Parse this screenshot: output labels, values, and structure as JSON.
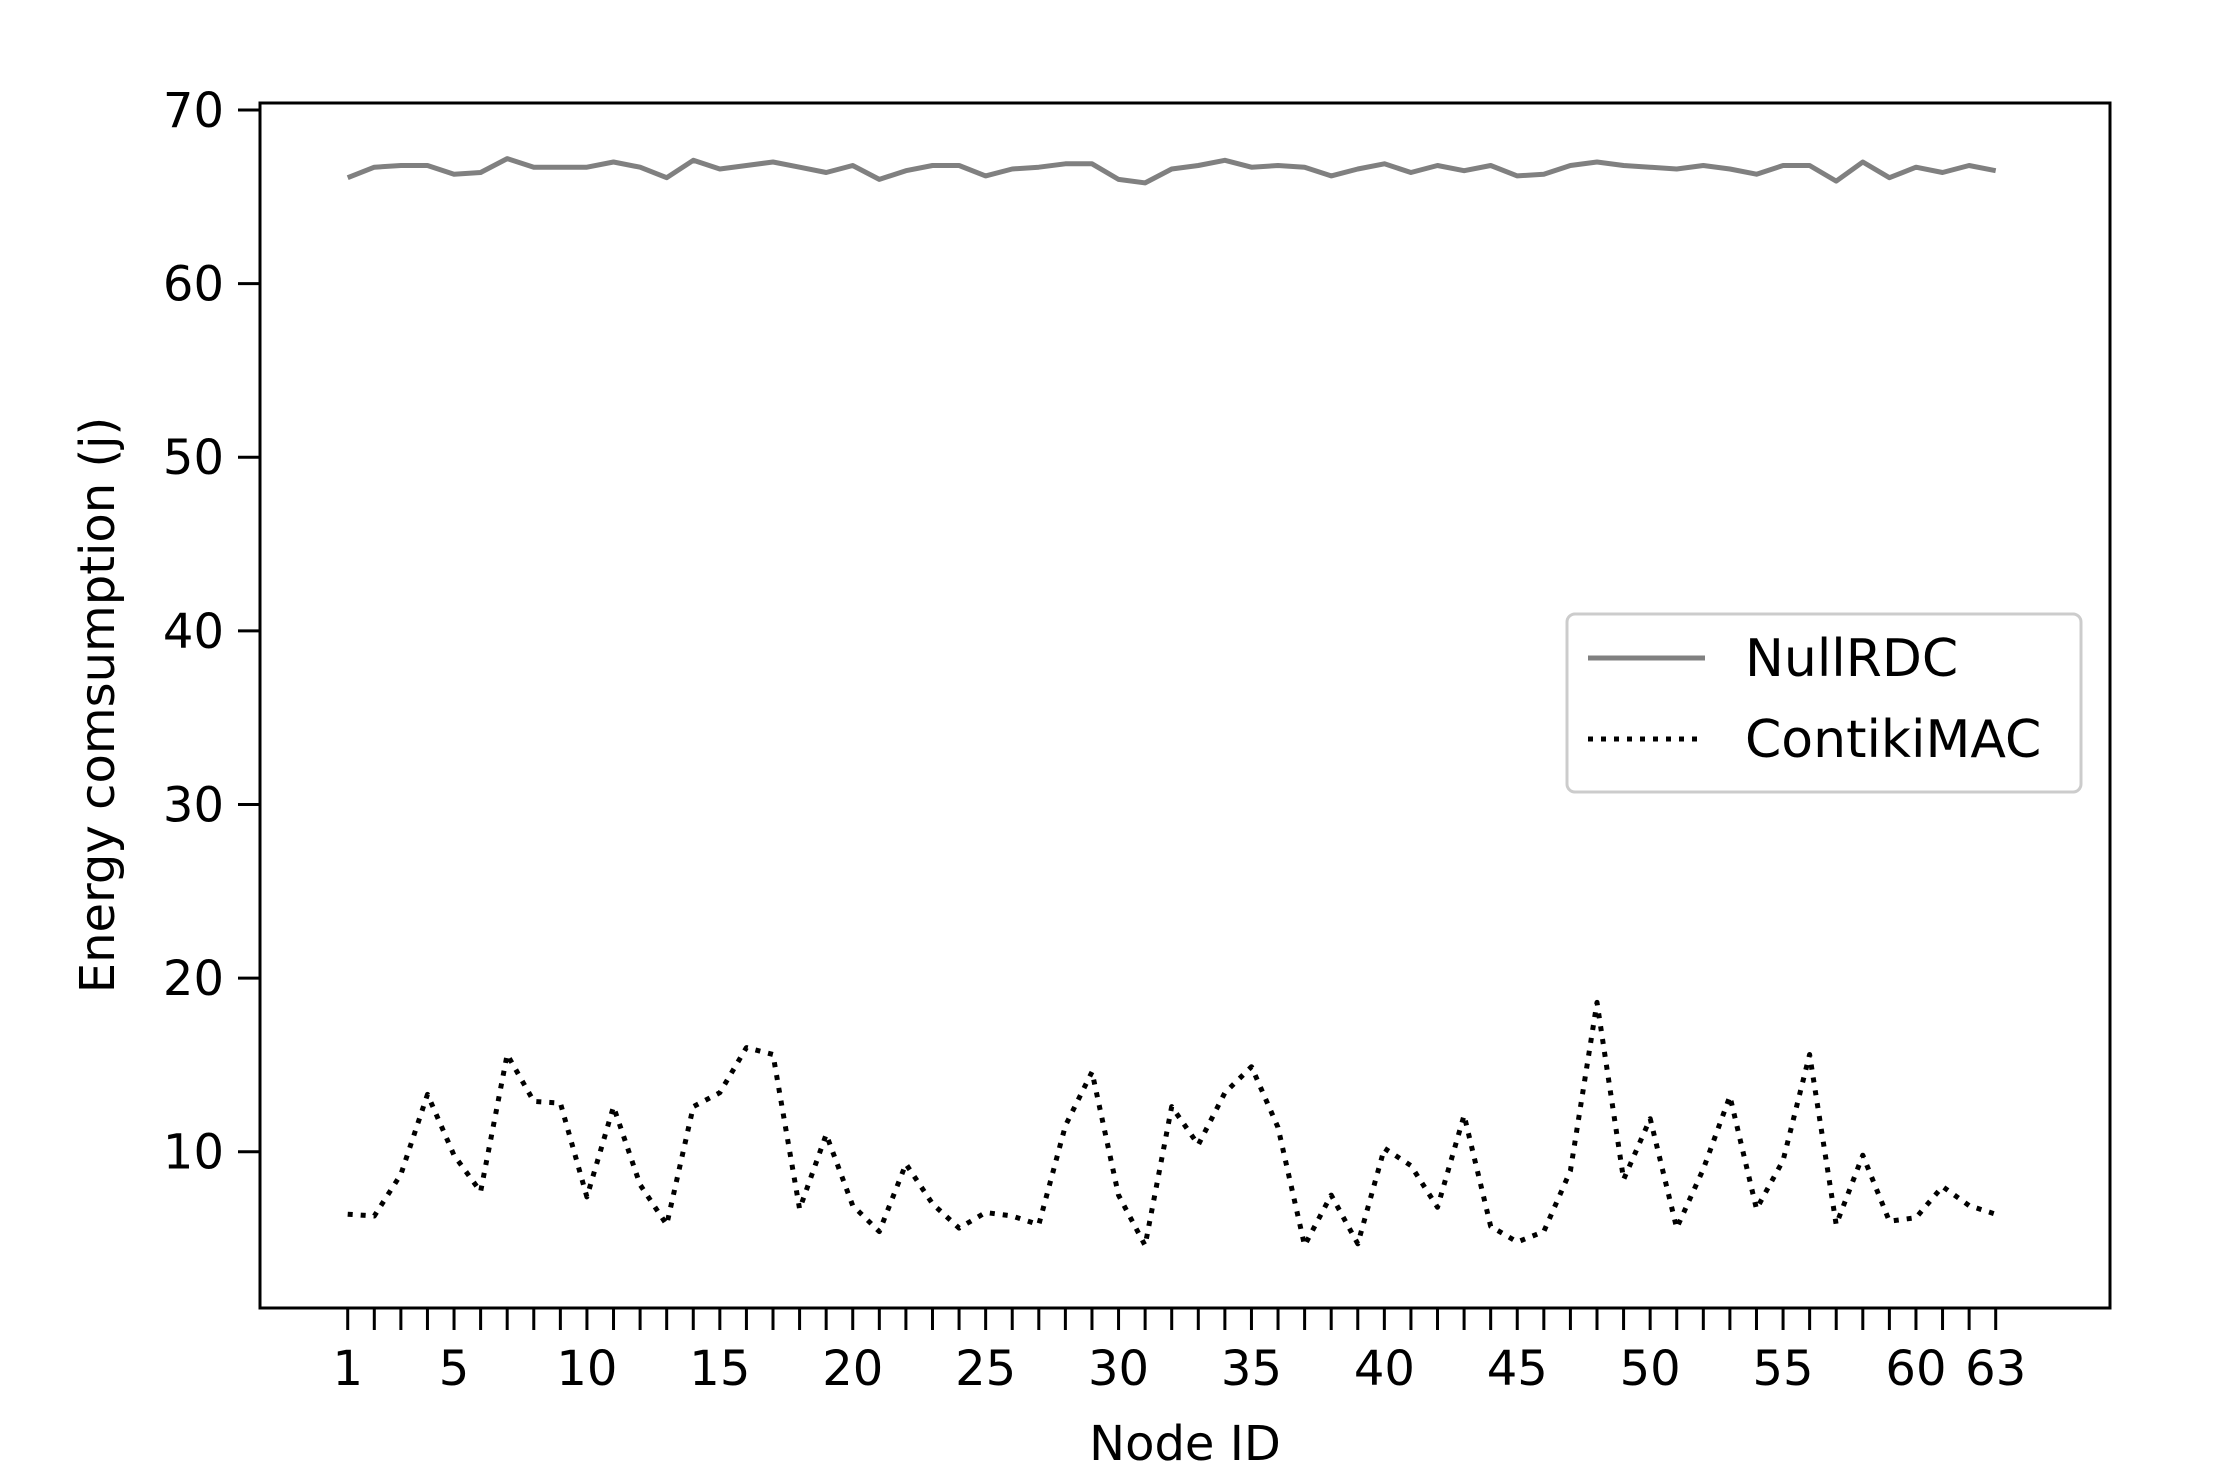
{
  "chart_data": {
    "type": "line",
    "title": "",
    "xlabel": "Node ID",
    "ylabel": "Energy comsumption (j)",
    "xlim": [
      -2.3,
      67.3
    ],
    "ylim": [
      1.0,
      70.4
    ],
    "x": [
      1,
      2,
      3,
      4,
      5,
      6,
      7,
      8,
      9,
      10,
      11,
      12,
      13,
      14,
      15,
      16,
      17,
      18,
      19,
      20,
      21,
      22,
      23,
      24,
      25,
      26,
      27,
      28,
      29,
      30,
      31,
      32,
      33,
      34,
      35,
      36,
      37,
      38,
      39,
      40,
      41,
      42,
      43,
      44,
      45,
      46,
      47,
      48,
      49,
      50,
      51,
      52,
      53,
      54,
      55,
      56,
      57,
      58,
      59,
      60,
      61,
      62,
      63
    ],
    "xticks": [
      1,
      2,
      3,
      4,
      5,
      6,
      7,
      8,
      9,
      10,
      11,
      12,
      13,
      14,
      15,
      16,
      17,
      18,
      19,
      20,
      21,
      22,
      23,
      24,
      25,
      26,
      27,
      28,
      29,
      30,
      31,
      32,
      33,
      34,
      35,
      36,
      37,
      38,
      39,
      40,
      41,
      42,
      43,
      44,
      45,
      46,
      47,
      48,
      49,
      50,
      51,
      52,
      53,
      54,
      55,
      56,
      57,
      58,
      59,
      60,
      61,
      62,
      63
    ],
    "xtick_labels": [
      {
        "x": 1,
        "label": "1"
      },
      {
        "x": 5,
        "label": "5"
      },
      {
        "x": 10,
        "label": "10"
      },
      {
        "x": 15,
        "label": "15"
      },
      {
        "x": 20,
        "label": "20"
      },
      {
        "x": 25,
        "label": "25"
      },
      {
        "x": 30,
        "label": "30"
      },
      {
        "x": 35,
        "label": "35"
      },
      {
        "x": 40,
        "label": "40"
      },
      {
        "x": 45,
        "label": "45"
      },
      {
        "x": 50,
        "label": "50"
      },
      {
        "x": 55,
        "label": "55"
      },
      {
        "x": 60,
        "label": "60"
      },
      {
        "x": 63,
        "label": "63"
      }
    ],
    "yticks": [
      10,
      20,
      30,
      40,
      50,
      60,
      70
    ],
    "grid": false,
    "legend": "center-right",
    "series": [
      {
        "name": "NullRDC",
        "color": "#808080",
        "style": "solid",
        "values": [
          66.1,
          66.7,
          66.8,
          66.8,
          66.3,
          66.4,
          67.2,
          66.7,
          66.7,
          66.7,
          67.0,
          66.7,
          66.1,
          67.1,
          66.6,
          66.8,
          67.0,
          66.7,
          66.4,
          66.8,
          66.0,
          66.5,
          66.8,
          66.8,
          66.2,
          66.6,
          66.7,
          66.9,
          66.9,
          66.0,
          65.8,
          66.6,
          66.8,
          67.1,
          66.7,
          66.8,
          66.7,
          66.2,
          66.6,
          66.9,
          66.4,
          66.8,
          66.5,
          66.8,
          66.2,
          66.3,
          66.8,
          67.0,
          66.8,
          66.7,
          66.6,
          66.8,
          66.6,
          66.3,
          66.8,
          66.8,
          65.9,
          67.0,
          66.1,
          66.7,
          66.4,
          66.8,
          66.5
        ]
      },
      {
        "name": "ContikiMAC",
        "color": "#000000",
        "style": "dotted",
        "values": [
          6.4,
          6.3,
          8.7,
          13.3,
          9.8,
          7.7,
          15.6,
          12.9,
          12.8,
          7.4,
          12.6,
          8.1,
          5.8,
          12.6,
          13.4,
          16.0,
          15.6,
          6.7,
          11.0,
          6.9,
          5.4,
          9.3,
          7.0,
          5.6,
          6.5,
          6.3,
          5.8,
          11.5,
          14.6,
          7.5,
          4.6,
          12.6,
          10.4,
          13.4,
          14.9,
          11.4,
          4.6,
          7.5,
          4.7,
          10.2,
          9.2,
          6.8,
          12.1,
          5.7,
          4.8,
          5.4,
          8.9,
          18.6,
          8.4,
          11.9,
          5.6,
          9.0,
          13.2,
          6.7,
          9.5,
          15.6,
          5.8,
          9.8,
          6.0,
          6.2,
          8.0,
          6.9,
          6.4
        ]
      }
    ]
  }
}
